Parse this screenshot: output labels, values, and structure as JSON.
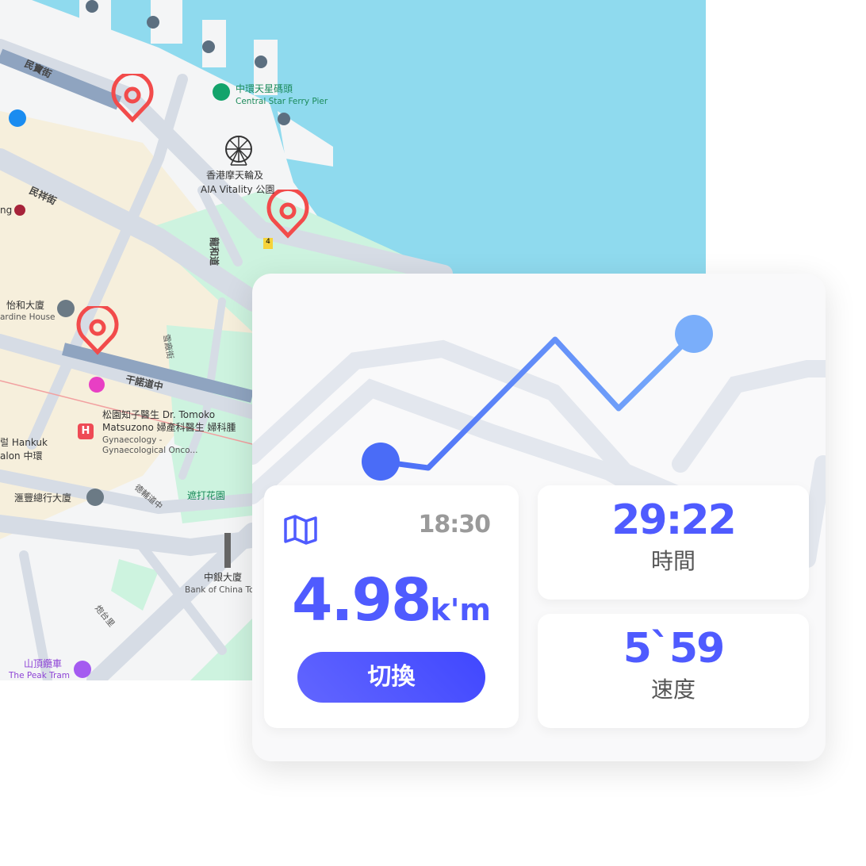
{
  "map": {
    "colors": {
      "water": "#8fdaee",
      "land": "#f5f5f6",
      "road": "#d6dce5",
      "park": "#cdf3df",
      "building": "#f6efdc",
      "pin": "#f24b4b"
    },
    "labels": {
      "street_minbao": "民寶街",
      "street_minxiang": "民祥街",
      "street_longhe": "龍和道",
      "street_ledding": "雪廠街",
      "street_connaught": "干諾道中",
      "street_desvoeux": "德輔道中",
      "street_battery": "炮台里",
      "ferry_pier_zh": "中環天星碼頭",
      "ferry_pier_en": "Central Star Ferry Pier",
      "wheel_zh": "香港摩天輪及",
      "wheel_en": "AIA Vitality 公園",
      "jardine_zh": "怡和大廈",
      "jardine_en": "ardine House",
      "station_partial": "ng",
      "doctor_line1": "松園知子醫生 Dr. Tomoko",
      "doctor_line2": "Matsuzono 婦產科醫生 婦科腫",
      "doctor_line3": "Gynaecology -",
      "doctor_line4": "Gynaecological Onco...",
      "hankuk_line1": "럴 Hankuk",
      "hankuk_line2": "alon 中環",
      "hsbc": "滙豐總行大廈",
      "statue_square": "遮打花園",
      "boc_zh": "中銀大廈",
      "boc_en": "Bank of China To",
      "peak_zh": "山頂纜車",
      "peak_en": "The Peak Tram",
      "route_shield": "4"
    }
  },
  "panel": {
    "route_colors": {
      "start": "#4a6cf7",
      "end": "#7aaefa"
    },
    "distance_card": {
      "icon": "map-icon",
      "time": "18:30",
      "distance": "4.98",
      "unit": "k'm",
      "button": "切換",
      "button_color": "#4a4ffb"
    },
    "duration_card": {
      "value": "29:22",
      "label": "時間"
    },
    "pace_card": {
      "value": "5`59",
      "label": "速度"
    }
  }
}
